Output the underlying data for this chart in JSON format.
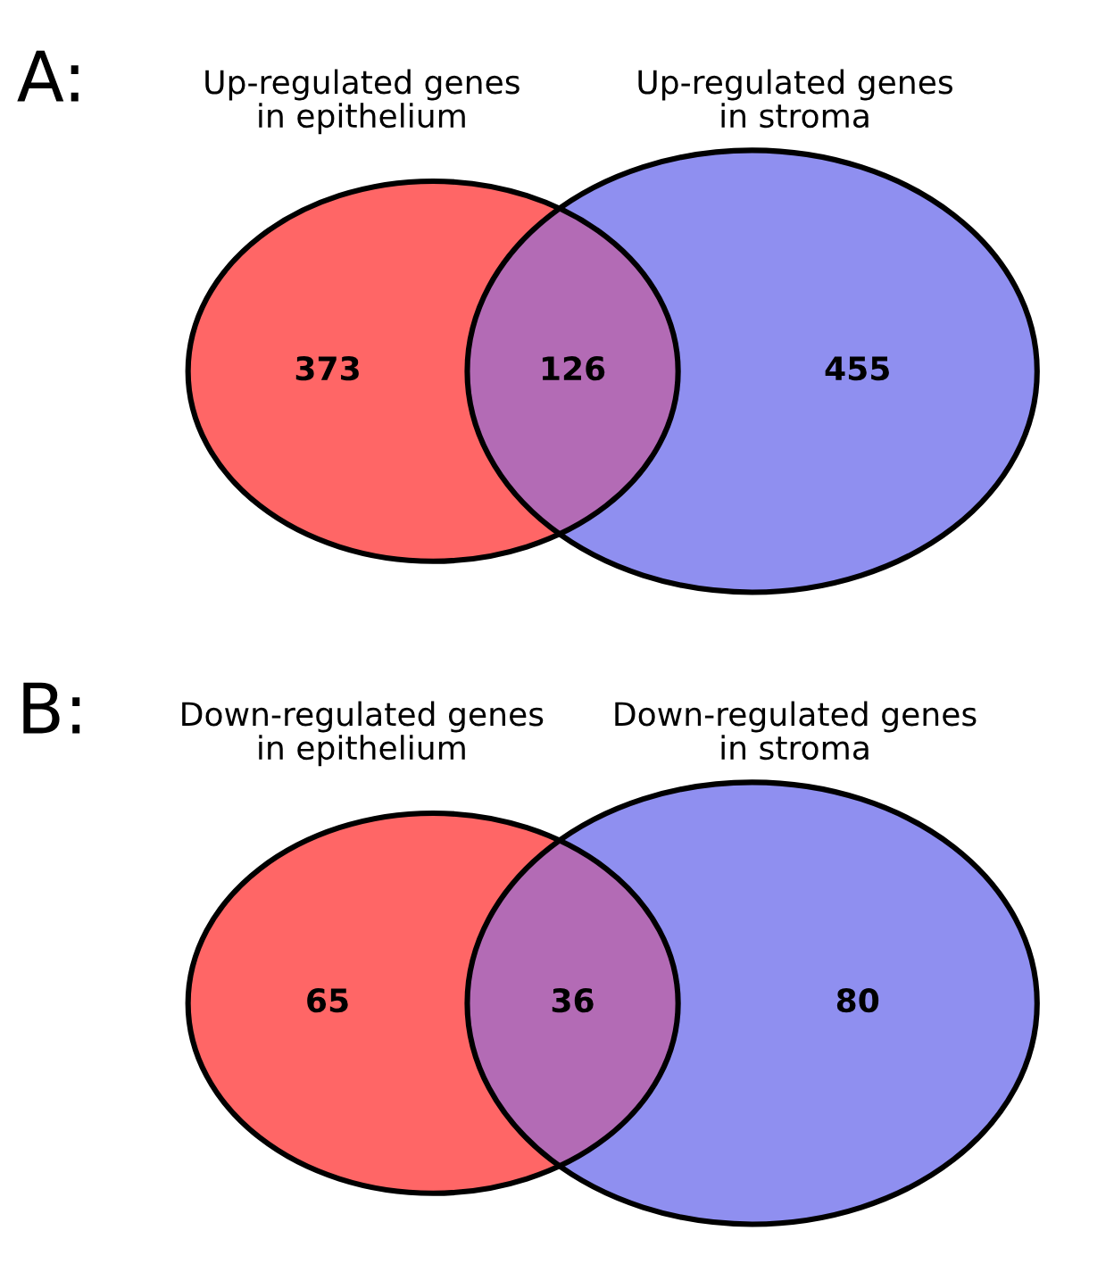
{
  "chart_data": [
    {
      "type": "other",
      "title": "A:",
      "annotations": [
        "Up-regulated genes\nin epithelium",
        "Up-regulated genes\nin stroma"
      ],
      "categories": [
        null,
        null,
        null
      ],
      "values": [
        373,
        126,
        455
      ],
      "data_labels": true,
      "colors": [
        "#ff6666",
        "#b36bb5",
        "#8f8ff0"
      ]
    },
    {
      "type": "other",
      "title": "B:",
      "annotations": [
        "Down-regulated genes\nin epithelium",
        "Down-regulated genes\nin stroma"
      ],
      "categories": [
        null,
        null,
        null
      ],
      "values": [
        65,
        36,
        80
      ],
      "data_labels": true,
      "colors": [
        "#ff6666",
        "#b36bb5",
        "#8f8ff0"
      ]
    }
  ]
}
